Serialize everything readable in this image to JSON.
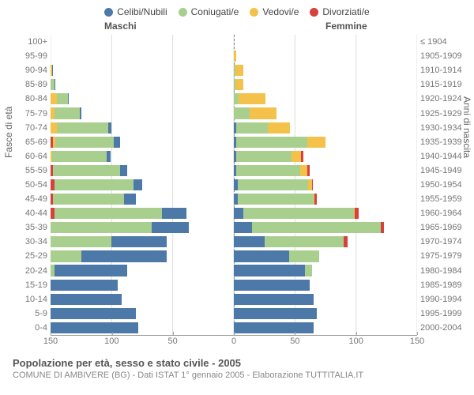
{
  "legend": [
    {
      "label": "Celibi/Nubili",
      "color": "#4d79a8"
    },
    {
      "label": "Coniugati/e",
      "color": "#a8cf8e"
    },
    {
      "label": "Vedovi/e",
      "color": "#f4c24b"
    },
    {
      "label": "Divorziati/e",
      "color": "#d7403b"
    }
  ],
  "headers": {
    "male": "Maschi",
    "female": "Femmine"
  },
  "axis_labels": {
    "left": "Fasce di età",
    "right": "Anni di nascita"
  },
  "title": "Popolazione per età, sesso e stato civile - 2005",
  "subtitle": "COMUNE DI AMBIVERE (BG) - Dati ISTAT 1° gennaio 2005 - Elaborazione TUTTITALIA.IT",
  "xmax": 150,
  "xticks": [
    150,
    100,
    50,
    0,
    50,
    100,
    150
  ],
  "colors": {
    "celibi": "#4d79a8",
    "coniugati": "#a8cf8e",
    "vedovi": "#f4c24b",
    "divorziati": "#d7403b",
    "grid": "#dddddd",
    "axis": "#999999",
    "bg": "#ffffff",
    "text": "#666666"
  },
  "font": {
    "family": "Arial",
    "legend_size": 12,
    "tick_size": 11,
    "title_size": 13,
    "subtitle_size": 11
  },
  "rows": [
    {
      "age": "100+",
      "birth": "≤ 1904",
      "m": [
        0,
        0,
        0,
        0
      ],
      "f": [
        0,
        0,
        0,
        0
      ]
    },
    {
      "age": "95-99",
      "birth": "1905-1909",
      "m": [
        0,
        0,
        0,
        0
      ],
      "f": [
        0,
        0,
        2,
        0
      ]
    },
    {
      "age": "90-94",
      "birth": "1910-1914",
      "m": [
        1,
        0,
        1,
        0
      ],
      "f": [
        0,
        1,
        7,
        0
      ]
    },
    {
      "age": "85-89",
      "birth": "1915-1919",
      "m": [
        1,
        3,
        0,
        0
      ],
      "f": [
        0,
        1,
        7,
        0
      ]
    },
    {
      "age": "80-84",
      "birth": "1920-1924",
      "m": [
        1,
        9,
        5,
        0
      ],
      "f": [
        0,
        4,
        22,
        0
      ]
    },
    {
      "age": "75-79",
      "birth": "1925-1929",
      "m": [
        1,
        21,
        3,
        0
      ],
      "f": [
        0,
        13,
        22,
        0
      ]
    },
    {
      "age": "70-74",
      "birth": "1930-1934",
      "m": [
        3,
        42,
        5,
        0
      ],
      "f": [
        2,
        26,
        18,
        0
      ]
    },
    {
      "age": "65-69",
      "birth": "1935-1939",
      "m": [
        5,
        48,
        2,
        2
      ],
      "f": [
        2,
        58,
        15,
        0
      ]
    },
    {
      "age": "60-64",
      "birth": "1940-1944",
      "m": [
        3,
        45,
        1,
        0
      ],
      "f": [
        2,
        45,
        8,
        2
      ]
    },
    {
      "age": "55-59",
      "birth": "1945-1949",
      "m": [
        6,
        55,
        0,
        2
      ],
      "f": [
        2,
        52,
        6,
        2
      ]
    },
    {
      "age": "50-54",
      "birth": "1950-1954",
      "m": [
        7,
        65,
        0,
        3
      ],
      "f": [
        3,
        58,
        3,
        1
      ]
    },
    {
      "age": "45-49",
      "birth": "1955-1959",
      "m": [
        10,
        58,
        0,
        2
      ],
      "f": [
        3,
        62,
        1,
        2
      ]
    },
    {
      "age": "40-44",
      "birth": "1960-1964",
      "m": [
        20,
        88,
        0,
        3
      ],
      "f": [
        8,
        90,
        1,
        3
      ]
    },
    {
      "age": "35-39",
      "birth": "1965-1969",
      "m": [
        30,
        83,
        0,
        0
      ],
      "f": [
        15,
        105,
        0,
        3
      ]
    },
    {
      "age": "30-34",
      "birth": "1970-1974",
      "m": [
        45,
        50,
        0,
        0
      ],
      "f": [
        25,
        65,
        0,
        3
      ]
    },
    {
      "age": "25-29",
      "birth": "1975-1979",
      "m": [
        70,
        25,
        0,
        0
      ],
      "f": [
        45,
        25,
        0,
        0
      ]
    },
    {
      "age": "20-24",
      "birth": "1980-1984",
      "m": [
        60,
        3,
        0,
        0
      ],
      "f": [
        58,
        6,
        0,
        0
      ]
    },
    {
      "age": "15-19",
      "birth": "1985-1989",
      "m": [
        55,
        0,
        0,
        0
      ],
      "f": [
        62,
        0,
        0,
        0
      ]
    },
    {
      "age": "10-14",
      "birth": "1990-1994",
      "m": [
        58,
        0,
        0,
        0
      ],
      "f": [
        65,
        0,
        0,
        0
      ]
    },
    {
      "age": "5-9",
      "birth": "1995-1999",
      "m": [
        70,
        0,
        0,
        0
      ],
      "f": [
        68,
        0,
        0,
        0
      ]
    },
    {
      "age": "0-4",
      "birth": "2000-2004",
      "m": [
        72,
        0,
        0,
        0
      ],
      "f": [
        65,
        0,
        0,
        0
      ]
    }
  ]
}
